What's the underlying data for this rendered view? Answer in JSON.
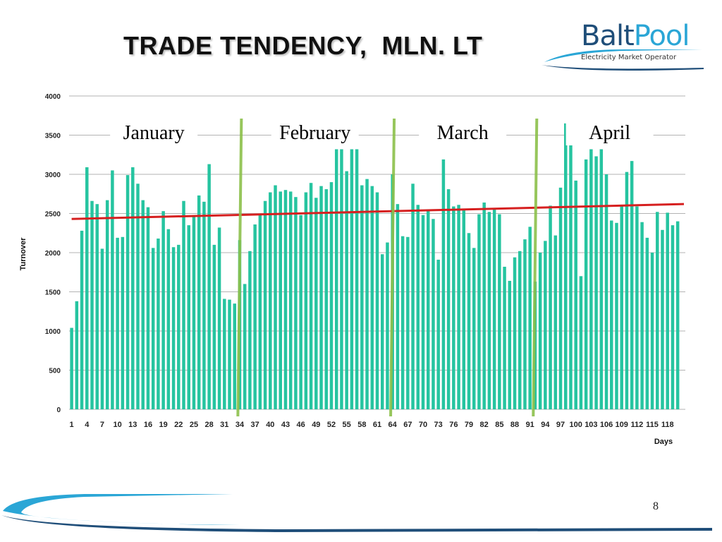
{
  "slide": {
    "title": "TRADE TENDENCY,  MLN. LT",
    "page_number": "8"
  },
  "logo": {
    "name_part1": "Balt",
    "name_part2": "Pool",
    "tagline": "Electricity Market Operator"
  },
  "colors": {
    "bar": "#26c4a0",
    "trend": "#d62020",
    "month_divider": "#8cc04b",
    "grid": "#9a9a9a",
    "logo_dark": "#1f4e79",
    "logo_light": "#2aa6d6"
  },
  "chart_data": {
    "type": "bar",
    "xlabel": "Days",
    "ylabel": "Turnover",
    "ylim": [
      0,
      4000
    ],
    "yticks": [
      0,
      500,
      1000,
      1500,
      2000,
      2500,
      3000,
      3500,
      4000
    ],
    "grid": true,
    "x": [
      1,
      2,
      3,
      4,
      5,
      6,
      7,
      8,
      9,
      10,
      11,
      12,
      13,
      14,
      15,
      16,
      17,
      18,
      19,
      20,
      21,
      22,
      23,
      24,
      25,
      26,
      27,
      28,
      29,
      30,
      31,
      32,
      33,
      34,
      35,
      36,
      37,
      38,
      39,
      40,
      41,
      42,
      43,
      44,
      45,
      46,
      47,
      48,
      49,
      50,
      51,
      52,
      53,
      54,
      55,
      56,
      57,
      58,
      59,
      60,
      61,
      62,
      63,
      64,
      65,
      66,
      67,
      68,
      69,
      70,
      71,
      72,
      73,
      74,
      75,
      76,
      77,
      78,
      79,
      80,
      81,
      82,
      83,
      84,
      85,
      86,
      87,
      88,
      89,
      90,
      91,
      92,
      93,
      94,
      95,
      96,
      97,
      98,
      99,
      100,
      101,
      102,
      103,
      104,
      105,
      106,
      107,
      108,
      109,
      110,
      111,
      112,
      113,
      114,
      115,
      116,
      117,
      118,
      119,
      120,
      121
    ],
    "x_tick_labels": [
      "1",
      "4",
      "7",
      "10",
      "13",
      "16",
      "19",
      "22",
      "25",
      "28",
      "31",
      "34",
      "37",
      "40",
      "43",
      "46",
      "49",
      "52",
      "55",
      "58",
      "61",
      "64",
      "67",
      "70",
      "73",
      "76",
      "79",
      "82",
      "85",
      "88",
      "91",
      "94",
      "97",
      "100",
      "103",
      "106",
      "109",
      "112",
      "115",
      "118"
    ],
    "values": [
      1040,
      1380,
      2280,
      3090,
      2660,
      2620,
      2050,
      2670,
      3050,
      2190,
      2200,
      2990,
      3090,
      2880,
      2670,
      2580,
      2060,
      2180,
      2530,
      2300,
      2070,
      2100,
      2660,
      2350,
      2470,
      2730,
      2650,
      3130,
      2100,
      2320,
      1410,
      1400,
      1350,
      2160,
      1600,
      2020,
      2360,
      2480,
      2660,
      2770,
      2860,
      2780,
      2800,
      2780,
      2710,
      2480,
      2770,
      2890,
      2700,
      2850,
      2810,
      2900,
      3320,
      3320,
      3040,
      3320,
      3320,
      2860,
      2940,
      2850,
      2770,
      1980,
      2130,
      3000,
      2620,
      2210,
      2200,
      2880,
      2610,
      2480,
      2540,
      2430,
      1910,
      3190,
      2810,
      2590,
      2610,
      2540,
      2250,
      2060,
      2490,
      2640,
      2520,
      2560,
      2490,
      1820,
      1640,
      1940,
      2020,
      2170,
      2330,
      1630,
      2000,
      2150,
      2600,
      2220,
      2830,
      3650,
      3380,
      2920,
      1700,
      3190,
      3320,
      3230,
      3320,
      3000,
      2410,
      2380,
      2600,
      3030,
      3170,
      2590,
      2390,
      2190,
      2000,
      2520,
      2290,
      2510,
      2350,
      2400,
      0
    ],
    "trend": {
      "start": 2430,
      "end": 2620
    },
    "months": [
      "January",
      "February",
      "March",
      "April"
    ],
    "month_dividers_after_day": [
      33,
      63,
      91
    ]
  }
}
